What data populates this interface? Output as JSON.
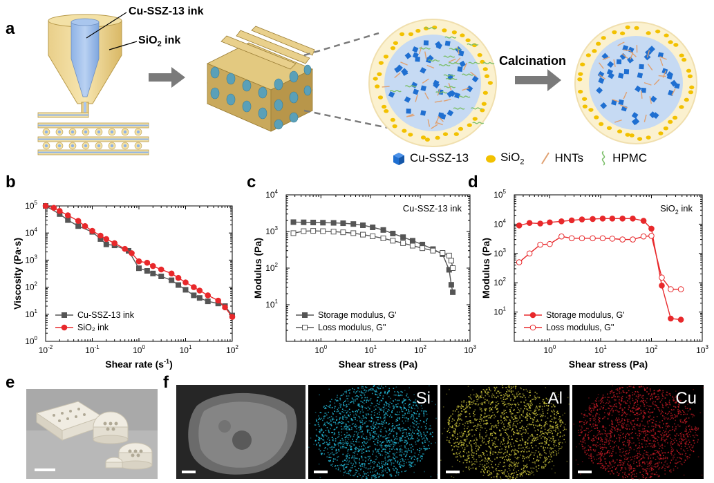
{
  "figure": {
    "panel_labels": [
      "a",
      "b",
      "c",
      "d",
      "e",
      "f"
    ]
  },
  "panel_a": {
    "ink_core_label": "Cu-SSZ-13 ink",
    "ink_shell_label_main": "SiO",
    "ink_shell_label_sub": "2",
    "ink_shell_label_tail": " ink",
    "process_label": "Calcination",
    "legend": [
      {
        "label": "Cu-SSZ-13",
        "icon": "blue-cube-icon",
        "color": "#1f6fd1"
      },
      {
        "label": "SiO",
        "sub": "2",
        "icon": "yellow-dot-icon",
        "color": "#f2c100"
      },
      {
        "label": "HNTs",
        "icon": "orange-rod-icon",
        "color": "#e0a070"
      },
      {
        "label": "HPMC",
        "icon": "green-wave-icon",
        "color": "#7cbf6a"
      }
    ]
  },
  "chart_data": [
    {
      "panel": "b",
      "type": "line",
      "xscale": "log",
      "yscale": "log",
      "xlabel_main": "Shear rate (s",
      "xlabel_sup": "-1",
      "xlabel_tail": ")",
      "ylabel": "Viscosity (Pa·s)",
      "xlim": [
        0.01,
        100
      ],
      "ylim": [
        1,
        100000
      ],
      "xticks": [
        {
          "v": 0.01,
          "b": "10",
          "e": "-2"
        },
        {
          "v": 0.1,
          "b": "10",
          "e": "-1"
        },
        {
          "v": 1,
          "b": "10",
          "e": "0"
        },
        {
          "v": 10,
          "b": "10",
          "e": "1"
        },
        {
          "v": 100,
          "b": "10",
          "e": "2"
        }
      ],
      "yticks": [
        {
          "v": 1,
          "b": "10",
          "e": "0"
        },
        {
          "v": 10,
          "b": "10",
          "e": "1"
        },
        {
          "v": 100,
          "b": "10",
          "e": "2"
        },
        {
          "v": 1000,
          "b": "10",
          "e": "3"
        },
        {
          "v": 10000,
          "b": "10",
          "e": "4"
        },
        {
          "v": 100000,
          "b": "10",
          "e": "5"
        }
      ],
      "legend_placement": "bottom-left",
      "series": [
        {
          "name": "Cu-SSZ-13 ink",
          "color": "#555555",
          "marker": "square-filled",
          "x": [
            0.01,
            0.02,
            0.03,
            0.05,
            0.1,
            0.15,
            0.2,
            0.3,
            0.6,
            1,
            1.5,
            2,
            3,
            5,
            7,
            10,
            15,
            20,
            30,
            50,
            70,
            100
          ],
          "y": [
            100000,
            50000,
            30000,
            18000,
            11000,
            6000,
            3800,
            3500,
            2200,
            500,
            400,
            320,
            250,
            180,
            120,
            80,
            50,
            40,
            30,
            25,
            20,
            9
          ]
        },
        {
          "name": "SiO₂ ink",
          "color": "#e8282b",
          "marker": "circle-filled",
          "x": [
            0.01,
            0.015,
            0.02,
            0.03,
            0.05,
            0.07,
            0.1,
            0.15,
            0.2,
            0.3,
            0.5,
            0.7,
            1,
            1.5,
            2,
            3,
            5,
            7,
            10,
            15,
            20,
            30,
            50,
            70,
            100
          ],
          "y": [
            100000,
            85000,
            65000,
            45000,
            28000,
            18000,
            12000,
            8000,
            6000,
            4200,
            2600,
            1800,
            900,
            800,
            600,
            450,
            320,
            220,
            150,
            100,
            75,
            50,
            32,
            18,
            8
          ]
        }
      ]
    },
    {
      "panel": "c",
      "type": "line",
      "xscale": "log",
      "yscale": "log",
      "title": "Cu-SSZ-13 ink",
      "xlabel": "Shear stress (Pa)",
      "ylabel": "Modulus (Pa)",
      "xlim": [
        0.2,
        1000
      ],
      "ylim": [
        1,
        10000
      ],
      "xticks": [
        {
          "v": 1,
          "b": "10",
          "e": "0"
        },
        {
          "v": 10,
          "b": "10",
          "e": "1"
        },
        {
          "v": 100,
          "b": "10",
          "e": "2"
        },
        {
          "v": 1000,
          "b": "10",
          "e": "3"
        }
      ],
      "yticks": [
        {
          "v": 10,
          "b": "10",
          "e": "1"
        },
        {
          "v": 100,
          "b": "10",
          "e": "2"
        },
        {
          "v": 1000,
          "b": "10",
          "e": "3"
        },
        {
          "v": 10000,
          "b": "10",
          "e": "4"
        }
      ],
      "legend_placement": "bottom-left",
      "series": [
        {
          "name": "Storage modulus, G'",
          "color": "#555555",
          "marker": "square-filled",
          "x": [
            0.28,
            0.45,
            0.7,
            1.1,
            1.8,
            2.8,
            4.5,
            7,
            11,
            18,
            28,
            45,
            70,
            110,
            180,
            280,
            380,
            420,
            450
          ],
          "y": [
            1800,
            1780,
            1760,
            1740,
            1720,
            1680,
            1600,
            1480,
            1300,
            1100,
            880,
            700,
            560,
            440,
            330,
            240,
            90,
            35,
            22
          ]
        },
        {
          "name": "Loss modulus, G''",
          "color": "#555555",
          "marker": "square-open",
          "x": [
            0.28,
            0.45,
            0.7,
            1.1,
            1.8,
            2.8,
            4.5,
            7,
            11,
            18,
            28,
            45,
            70,
            110,
            180,
            280,
            380,
            420,
            450
          ],
          "y": [
            900,
            1020,
            1040,
            1020,
            990,
            950,
            900,
            820,
            740,
            650,
            560,
            480,
            410,
            350,
            300,
            260,
            220,
            160,
            100
          ]
        }
      ]
    },
    {
      "panel": "d",
      "type": "line",
      "xscale": "log",
      "yscale": "log",
      "title_main": "SiO",
      "title_sub": "2",
      "title_tail": " ink",
      "xlabel": "Shear stress (Pa)",
      "ylabel": "Modulus (Pa)",
      "xlim": [
        0.2,
        1000
      ],
      "ylim": [
        1,
        100000
      ],
      "xticks": [
        {
          "v": 1,
          "b": "10",
          "e": "0"
        },
        {
          "v": 10,
          "b": "10",
          "e": "1"
        },
        {
          "v": 100,
          "b": "10",
          "e": "2"
        },
        {
          "v": 1000,
          "b": "10",
          "e": "3"
        }
      ],
      "yticks": [
        {
          "v": 10,
          "b": "10",
          "e": "1"
        },
        {
          "v": 100,
          "b": "10",
          "e": "2"
        },
        {
          "v": 1000,
          "b": "10",
          "e": "3"
        },
        {
          "v": 10000,
          "b": "10",
          "e": "4"
        },
        {
          "v": 100000,
          "b": "10",
          "e": "5"
        }
      ],
      "legend_placement": "bottom-left",
      "series": [
        {
          "name": "Storage modulus, G'",
          "color": "#e8282b",
          "marker": "circle-filled",
          "x": [
            0.25,
            0.4,
            0.65,
            1,
            1.7,
            2.7,
            4.3,
            7,
            11,
            17,
            27,
            43,
            70,
            100,
            160,
            240,
            380
          ],
          "y": [
            9000,
            11000,
            10500,
            11500,
            12500,
            13500,
            14500,
            15000,
            15500,
            15500,
            15500,
            15500,
            13000,
            7000,
            80,
            6,
            5.5
          ]
        },
        {
          "name": "Loss modulus, G''",
          "color": "#e8282b",
          "marker": "circle-open",
          "x": [
            0.25,
            0.4,
            0.65,
            1,
            1.7,
            2.7,
            4.3,
            7,
            11,
            17,
            27,
            43,
            70,
            100,
            160,
            240,
            380
          ],
          "y": [
            500,
            1000,
            2000,
            2100,
            3800,
            3300,
            3300,
            3300,
            3300,
            3200,
            3000,
            3000,
            3800,
            4000,
            150,
            60,
            60
          ]
        }
      ]
    }
  ],
  "panel_f": {
    "labels": [
      "Si",
      "Al",
      "Cu"
    ]
  }
}
